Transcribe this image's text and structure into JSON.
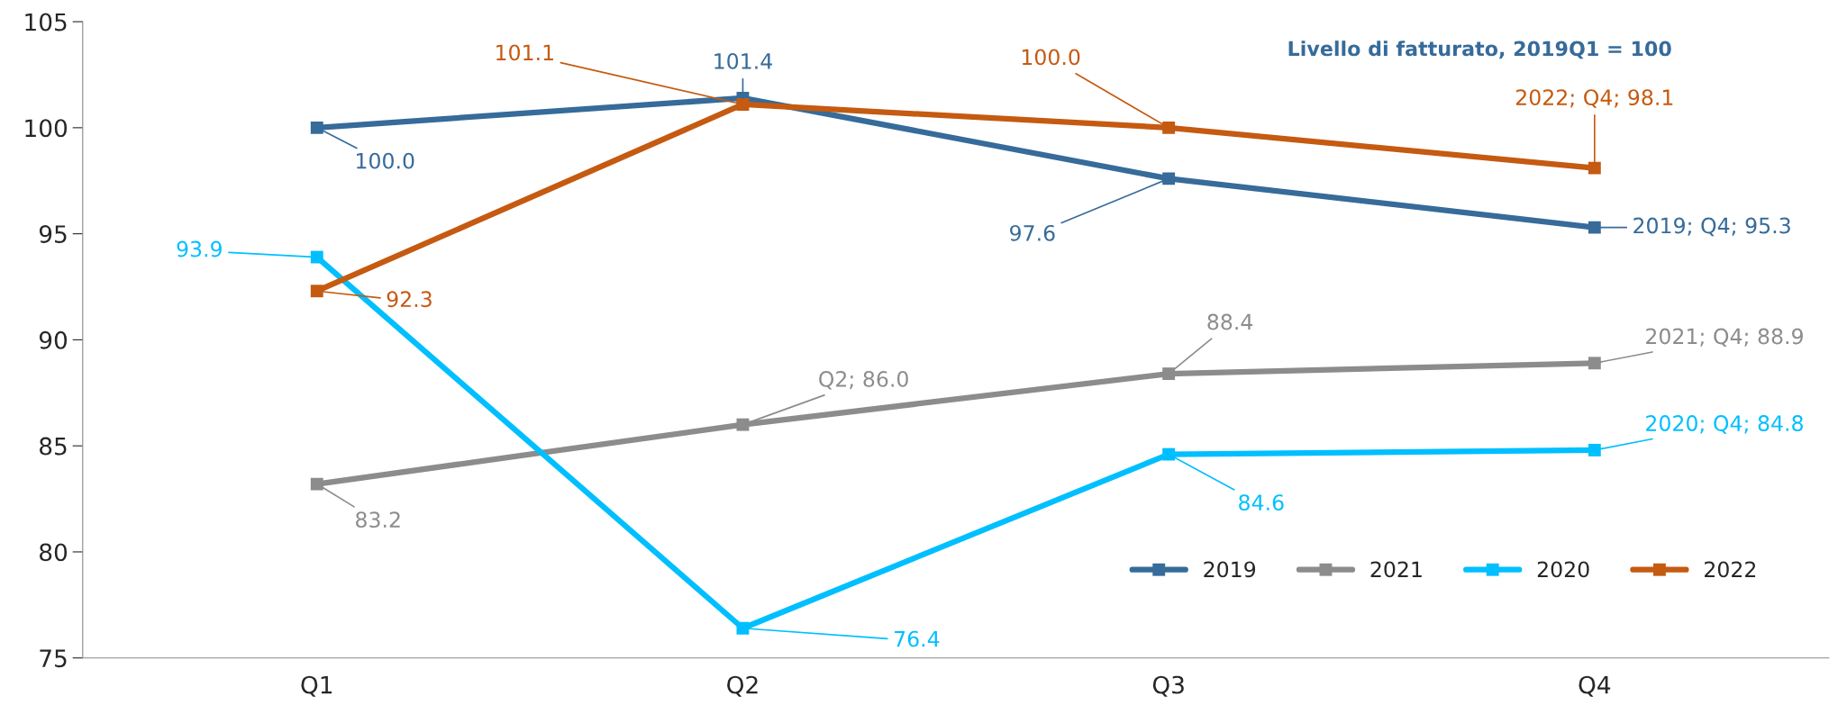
{
  "chart_data": {
    "type": "line",
    "title": "Livello di fatturato, 2019Q1 = 100",
    "categories": [
      "Q1",
      "Q2",
      "Q3",
      "Q4"
    ],
    "series": [
      {
        "name": "2019",
        "color": "#366b9a",
        "values": [
          100.0,
          101.4,
          97.6,
          95.3
        ],
        "value_labels": [
          "100.0",
          "101.4",
          "97.6",
          "2019; Q4; 95.3"
        ]
      },
      {
        "name": "2021",
        "color": "#8c8c8c",
        "values": [
          83.2,
          86.0,
          88.4,
          88.9
        ],
        "value_labels": [
          "83.2",
          "Q2; 86.0",
          "88.4",
          "2021; Q4; 88.9"
        ]
      },
      {
        "name": "2020",
        "color": "#00bfff",
        "values": [
          93.9,
          76.4,
          84.6,
          84.8
        ],
        "value_labels": [
          "93.9",
          "76.4",
          "84.6",
          "2020; Q4; 84.8"
        ]
      },
      {
        "name": "2022",
        "color": "#c55a11",
        "values": [
          92.3,
          101.1,
          100.0,
          98.1
        ],
        "value_labels": [
          "92.3",
          "101.1",
          "100.0",
          "2022; Q4; 98.1"
        ]
      }
    ],
    "ylim": [
      75,
      105
    ],
    "yticks": [
      75,
      80,
      85,
      90,
      95,
      100,
      105
    ],
    "marker": "square",
    "line_style": "solid",
    "grid": false,
    "legend": "bottom right"
  }
}
